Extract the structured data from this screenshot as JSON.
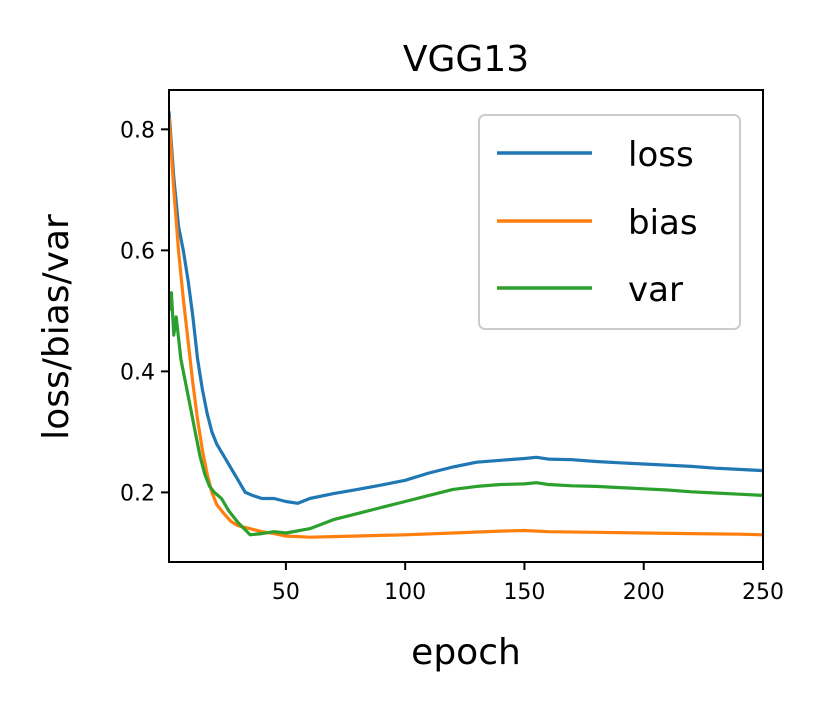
{
  "chart_data": {
    "type": "line",
    "title": "VGG13",
    "xlabel": "epoch",
    "ylabel": "loss/bias/var",
    "xlim": [
      1,
      250
    ],
    "ylim": [
      0.085,
      0.865
    ],
    "xticks": [
      50,
      100,
      150,
      200,
      250
    ],
    "xtick_labels": [
      "50",
      "100",
      "150",
      "200",
      "250"
    ],
    "yticks": [
      0.2,
      0.4,
      0.6,
      0.8
    ],
    "ytick_labels": [
      "0.2",
      "0.4",
      "0.6",
      "0.8"
    ],
    "legend_position": "upper-right",
    "series": [
      {
        "name": "loss",
        "color": "#1f77b4",
        "x": [
          1,
          3,
          5,
          7,
          9,
          11,
          13,
          15,
          17,
          19,
          21,
          24,
          27,
          30,
          33,
          36,
          40,
          45,
          50,
          55,
          60,
          70,
          80,
          90,
          100,
          110,
          120,
          130,
          140,
          150,
          155,
          160,
          170,
          180,
          190,
          200,
          210,
          220,
          230,
          240,
          250
        ],
        "values": [
          0.83,
          0.72,
          0.64,
          0.6,
          0.55,
          0.49,
          0.42,
          0.37,
          0.33,
          0.3,
          0.28,
          0.26,
          0.24,
          0.22,
          0.2,
          0.195,
          0.19,
          0.19,
          0.185,
          0.182,
          0.19,
          0.198,
          0.205,
          0.212,
          0.22,
          0.232,
          0.242,
          0.25,
          0.253,
          0.256,
          0.258,
          0.255,
          0.254,
          0.251,
          0.249,
          0.247,
          0.245,
          0.243,
          0.24,
          0.238,
          0.236
        ]
      },
      {
        "name": "bias",
        "color": "#ff7f0e",
        "x": [
          1,
          3,
          5,
          7,
          9,
          11,
          13,
          15,
          17,
          19,
          21,
          24,
          27,
          30,
          35,
          40,
          45,
          50,
          60,
          70,
          80,
          100,
          120,
          140,
          150,
          160,
          180,
          200,
          220,
          240,
          250
        ],
        "values": [
          0.82,
          0.7,
          0.6,
          0.52,
          0.45,
          0.38,
          0.32,
          0.27,
          0.23,
          0.2,
          0.18,
          0.165,
          0.152,
          0.145,
          0.14,
          0.135,
          0.132,
          0.128,
          0.126,
          0.127,
          0.128,
          0.13,
          0.133,
          0.136,
          0.137,
          0.135,
          0.134,
          0.133,
          0.132,
          0.131,
          0.13
        ]
      },
      {
        "name": "var",
        "color": "#2ca02c",
        "x": [
          1,
          2,
          3,
          4,
          6,
          8,
          10,
          12,
          14,
          16,
          18,
          20,
          23,
          26,
          30,
          35,
          40,
          45,
          50,
          60,
          70,
          80,
          90,
          100,
          110,
          120,
          130,
          140,
          150,
          155,
          160,
          170,
          180,
          190,
          200,
          210,
          220,
          230,
          240,
          250
        ],
        "values": [
          0.5,
          0.53,
          0.46,
          0.49,
          0.42,
          0.38,
          0.34,
          0.3,
          0.26,
          0.23,
          0.21,
          0.2,
          0.19,
          0.17,
          0.15,
          0.13,
          0.132,
          0.135,
          0.133,
          0.14,
          0.155,
          0.165,
          0.175,
          0.185,
          0.195,
          0.205,
          0.21,
          0.213,
          0.214,
          0.216,
          0.213,
          0.211,
          0.21,
          0.208,
          0.206,
          0.204,
          0.201,
          0.199,
          0.197,
          0.195
        ]
      }
    ]
  }
}
